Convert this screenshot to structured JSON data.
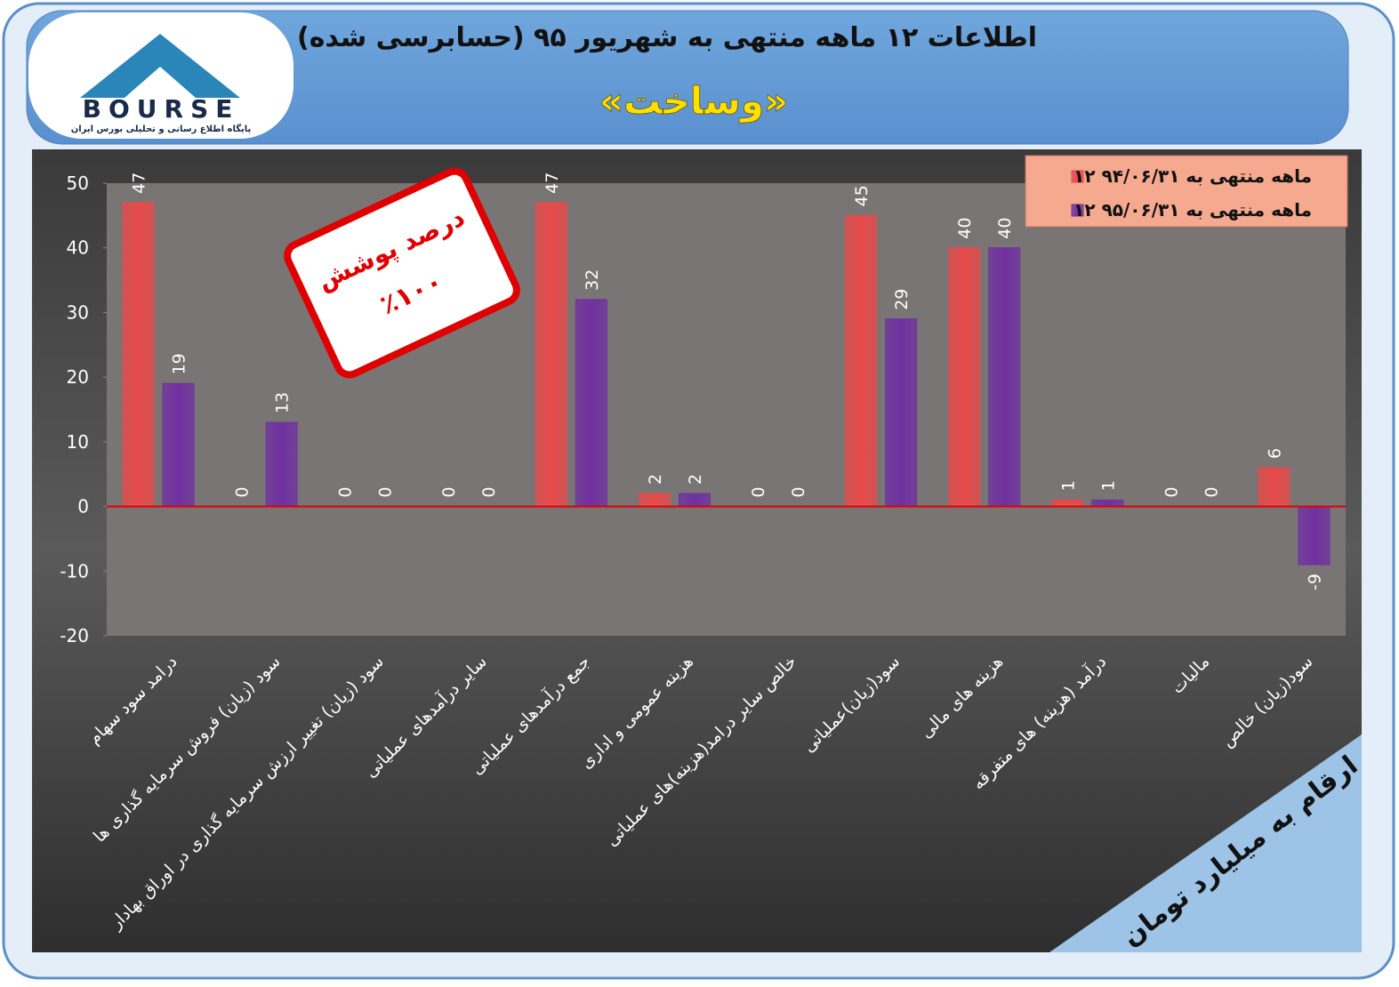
{
  "header": {
    "title": "اطلاعات ۱۲ ماهه منتهی به شهریور ۹۵ (حسابرسی شده)",
    "company": "«وساخت»"
  },
  "logo": {
    "name": "BOURSE",
    "caption": "پایگاه اطلاع رسانی و تحلیلی بورس ایران"
  },
  "stamp": {
    "line1": "درصد پوشش",
    "line2": "٪۱۰۰"
  },
  "note": "ارقام به میلیارد تومان",
  "chart_data": {
    "type": "bar",
    "categories": [
      "درامد سود سهام",
      "سود (زیان) فروش سرمایه گذاری ها",
      "سود (زیان) تغییر ارزش سرمایه گذاری در اوراق بهادار",
      "سایر درآمدهای عملیاتی",
      "جمع درآمدهای عملیاتی",
      "هزینه عمومی و اداری",
      "خالص سایر درامد(هزینه)های عملیاتی",
      "سود(زیان)عملیاتی",
      "هزینه های مالی",
      "درآمد (هزینه) های متفرقه",
      "مالیات",
      "سود(زیان) خالص"
    ],
    "series": [
      {
        "name": "۱۲ ماهه منتهی به ۹۴/۰۶/۳۱",
        "color": "#e84a4a",
        "values": [
          47,
          0,
          0,
          0,
          47,
          2,
          0,
          45,
          40,
          1,
          0,
          6
        ]
      },
      {
        "name": "۱۲ ماهه منتهی به ۹۵/۰۶/۳۱",
        "color": "#7030a0",
        "values": [
          19,
          13,
          0,
          0,
          32,
          2,
          0,
          29,
          40,
          1,
          0,
          -9
        ]
      }
    ],
    "ylim": [
      -20,
      50
    ],
    "yticks": [
      -20,
      -10,
      0,
      10,
      20,
      30,
      40,
      50
    ],
    "zero_line_color": "#e00000",
    "legend": "top-right"
  }
}
